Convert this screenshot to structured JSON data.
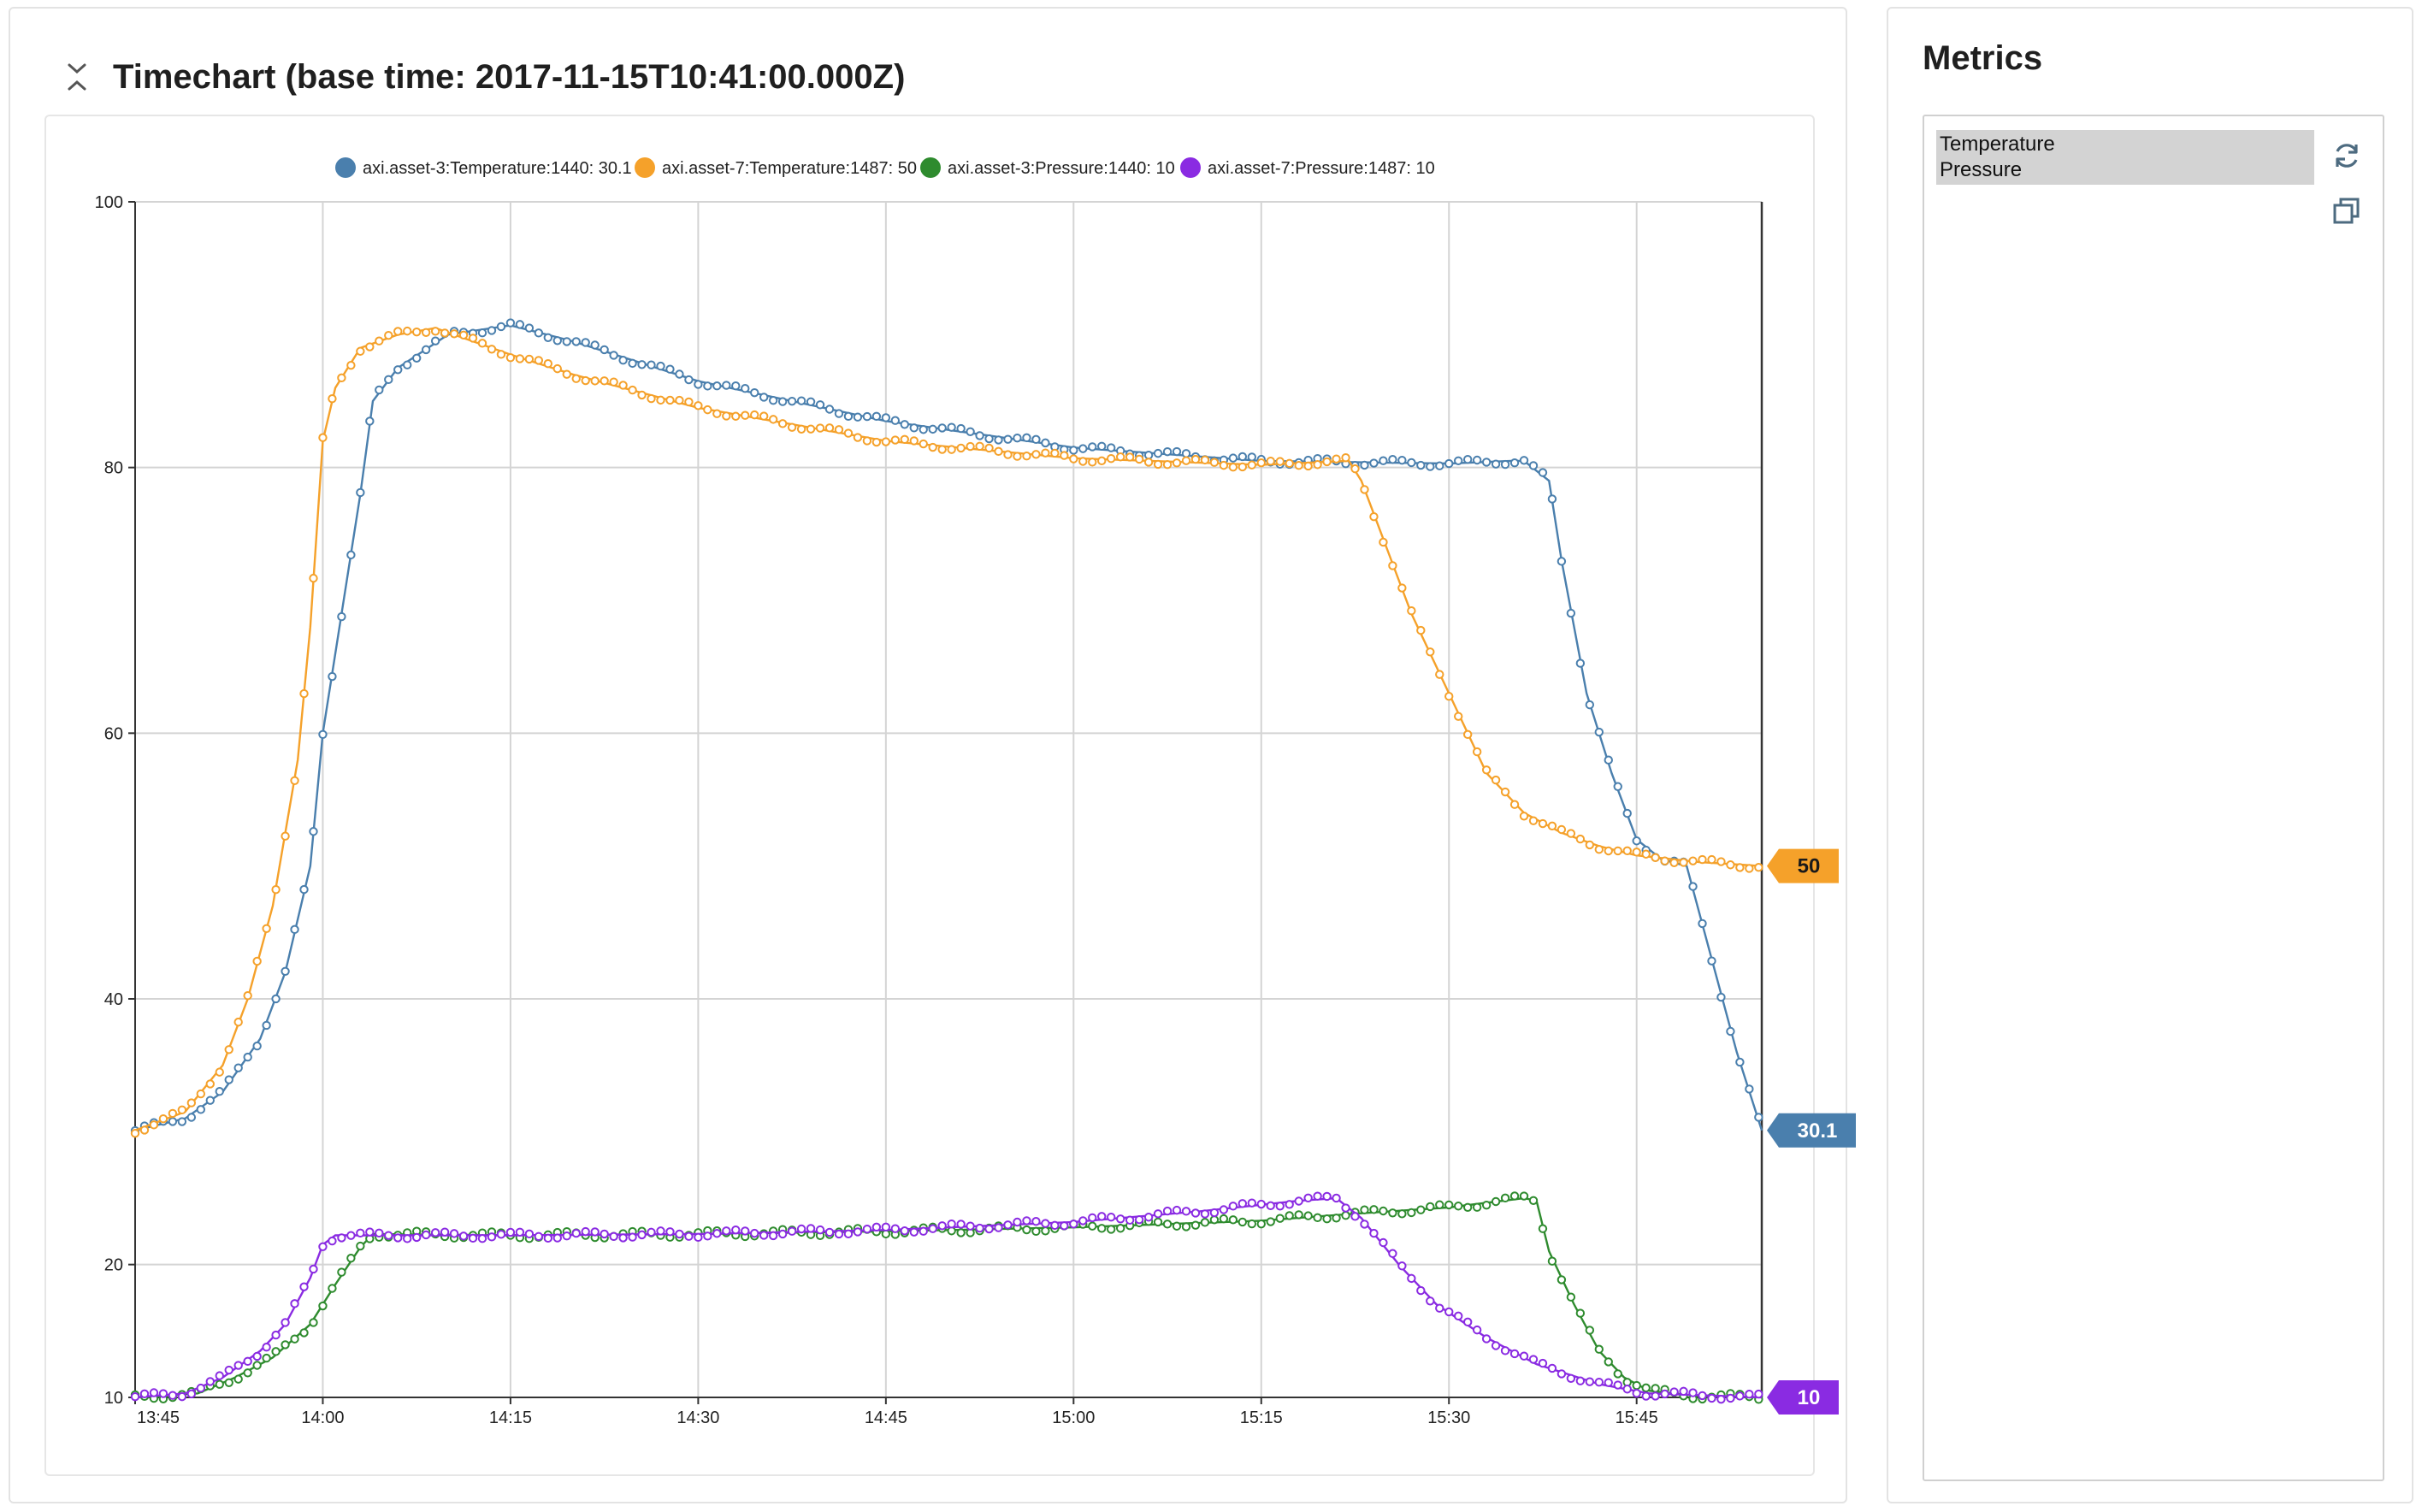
{
  "header": {
    "title": "Timechart (base time: 2017-11-15T10:41:00.000Z)"
  },
  "sidebar": {
    "title": "Metrics",
    "metrics": [
      "Temperature",
      "Pressure"
    ]
  },
  "icons": {
    "close": "collapse-x-icon",
    "refresh": "refresh-icon",
    "popout": "copy-window-icon"
  },
  "colors": {
    "blue": "#4a7fad",
    "orange": "#f5a12a",
    "green": "#2e8b2e",
    "purple": "#8a2be2"
  },
  "chart_data": {
    "type": "line",
    "x_ticks": [
      "13:45",
      "14:00",
      "14:15",
      "14:30",
      "14:45",
      "15:00",
      "15:15",
      "15:30",
      "15:45"
    ],
    "x_range": [
      "13:45",
      "15:55"
    ],
    "ylim": [
      10,
      100
    ],
    "y_ticks": [
      "10",
      "20",
      "40",
      "60",
      "80",
      "100"
    ],
    "grid": true,
    "legend_position": "top",
    "series": [
      {
        "name": "axi.asset-3:Temperature:1440: 30.1",
        "color": "#4a7fad",
        "end_label": "30.1",
        "points": [
          [
            "13:45",
            30.1
          ],
          [
            "13:49",
            31
          ],
          [
            "13:52",
            33
          ],
          [
            "13:55",
            37
          ],
          [
            "13:57",
            42
          ],
          [
            "13:59",
            50
          ],
          [
            "14:00",
            60
          ],
          [
            "14:02",
            72
          ],
          [
            "14:03",
            78
          ],
          [
            "14:04",
            85
          ],
          [
            "14:06",
            87.5
          ],
          [
            "14:10",
            90
          ],
          [
            "14:15",
            90.7
          ],
          [
            "14:20",
            89.5
          ],
          [
            "14:30",
            86.5
          ],
          [
            "14:45",
            83.5
          ],
          [
            "15:00",
            81.5
          ],
          [
            "15:15",
            80.5
          ],
          [
            "15:30",
            80.3
          ],
          [
            "15:35",
            80.5
          ],
          [
            "15:36",
            80.5
          ],
          [
            "15:38",
            79
          ],
          [
            "15:39",
            73
          ],
          [
            "15:41",
            63
          ],
          [
            "15:43",
            57
          ],
          [
            "15:45",
            52
          ],
          [
            "15:47",
            50.5
          ],
          [
            "15:49",
            50
          ],
          [
            "15:51",
            43
          ],
          [
            "15:53",
            36
          ],
          [
            "15:55",
            30.1
          ]
        ]
      },
      {
        "name": "axi.asset-7:Temperature:1487: 50",
        "color": "#f5a12a",
        "end_label": "50",
        "points": [
          [
            "13:45",
            30.1
          ],
          [
            "13:49",
            31.5
          ],
          [
            "13:52",
            35
          ],
          [
            "13:54",
            40
          ],
          [
            "13:56",
            47
          ],
          [
            "13:58",
            58
          ],
          [
            "13:59",
            68
          ],
          [
            "14:00",
            82
          ],
          [
            "14:01",
            86
          ],
          [
            "14:03",
            89
          ],
          [
            "14:06",
            90
          ],
          [
            "14:09",
            90.5
          ],
          [
            "14:12",
            89.5
          ],
          [
            "14:15",
            88.5
          ],
          [
            "14:20",
            87
          ],
          [
            "14:30",
            84.5
          ],
          [
            "14:45",
            82
          ],
          [
            "15:00",
            80.7
          ],
          [
            "15:15",
            80.2
          ],
          [
            "15:22",
            80.5
          ],
          [
            "15:23",
            79
          ],
          [
            "15:25",
            74
          ],
          [
            "15:27",
            69
          ],
          [
            "15:30",
            63
          ],
          [
            "15:33",
            57
          ],
          [
            "15:36",
            54
          ],
          [
            "15:39",
            52.5
          ],
          [
            "15:42",
            51.5
          ],
          [
            "15:45",
            50.8
          ],
          [
            "15:50",
            50.3
          ],
          [
            "15:55",
            50
          ]
        ]
      },
      {
        "name": "axi.asset-3:Pressure:1440: 10",
        "color": "#2e8b2e",
        "end_label": "",
        "points": [
          [
            "13:45",
            10
          ],
          [
            "13:50",
            10.3
          ],
          [
            "13:53",
            11.5
          ],
          [
            "13:56",
            13
          ],
          [
            "13:59",
            15.5
          ],
          [
            "14:01",
            18.5
          ],
          [
            "14:03",
            21.3
          ],
          [
            "14:04",
            22.3
          ],
          [
            "14:15",
            22.2
          ],
          [
            "14:30",
            22.3
          ],
          [
            "14:45",
            22.5
          ],
          [
            "15:00",
            22.8
          ],
          [
            "15:15",
            23.3
          ],
          [
            "15:22",
            23.8
          ],
          [
            "15:30",
            24.3
          ],
          [
            "15:36",
            25
          ],
          [
            "15:37",
            24.8
          ],
          [
            "15:38",
            21
          ],
          [
            "15:40",
            17
          ],
          [
            "15:42",
            13.5
          ],
          [
            "15:44",
            11.5
          ],
          [
            "15:46",
            10.5
          ],
          [
            "15:50",
            10.1
          ],
          [
            "15:55",
            10
          ]
        ]
      },
      {
        "name": "axi.asset-7:Pressure:1487: 10",
        "color": "#8a2be2",
        "end_label": "10",
        "points": [
          [
            "13:45",
            10
          ],
          [
            "13:49",
            10.3
          ],
          [
            "13:52",
            11.5
          ],
          [
            "13:55",
            13.5
          ],
          [
            "13:57",
            15.5
          ],
          [
            "13:59",
            19
          ],
          [
            "14:00",
            21.5
          ],
          [
            "14:01",
            22.2
          ],
          [
            "14:15",
            22.2
          ],
          [
            "14:30",
            22.3
          ],
          [
            "14:45",
            22.6
          ],
          [
            "15:00",
            23.2
          ],
          [
            "15:10",
            24
          ],
          [
            "15:18",
            24.8
          ],
          [
            "15:21",
            25
          ],
          [
            "15:23",
            23.5
          ],
          [
            "15:26",
            20
          ],
          [
            "15:29",
            17
          ],
          [
            "15:33",
            14.5
          ],
          [
            "15:37",
            12.5
          ],
          [
            "15:42",
            11
          ],
          [
            "15:46",
            10.3
          ],
          [
            "15:55",
            10
          ]
        ]
      }
    ]
  }
}
